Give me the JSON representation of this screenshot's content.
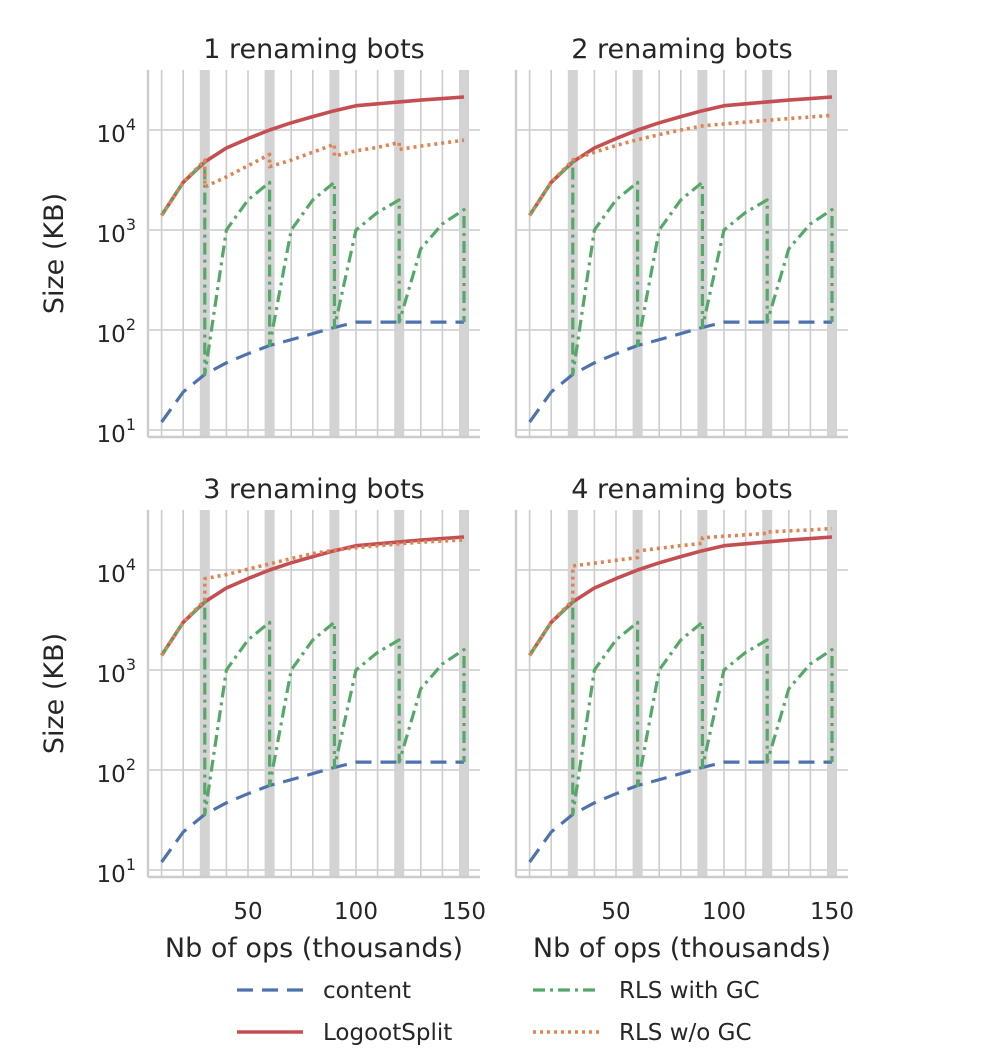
{
  "chart_data": {
    "type": "line",
    "y_scale": "log",
    "grid": true,
    "legend_placement": "bottom",
    "xlabel": "Nb of ops (thousands)",
    "ylabel": "Size (KB)",
    "xlim": [
      5,
      155
    ],
    "ylim": [
      8,
      40000
    ],
    "x_ticks": [
      50,
      100,
      150
    ],
    "x_tick_labels": [
      "50",
      "100",
      "150"
    ],
    "y_ticks": [
      10,
      100,
      1000,
      10000
    ],
    "y_tick_labels": [
      {
        "base": "10",
        "exp": "1"
      },
      {
        "base": "10",
        "exp": "2"
      },
      {
        "base": "10",
        "exp": "3"
      },
      {
        "base": "10",
        "exp": "4"
      }
    ],
    "rename_markers_x": [
      30,
      60,
      90,
      120,
      150
    ],
    "series_styles": {
      "content": {
        "color": "#4c72b0",
        "dash": "16,9",
        "width": 3.2
      },
      "LogootSplit": {
        "color": "#c44e52",
        "dash": "",
        "width": 3.6
      },
      "RLS with GC": {
        "color": "#55a868",
        "dash": "12,5,3,5",
        "width": 3.2
      },
      "RLS w/o GC": {
        "color": "#dd8452",
        "dash": "3,4",
        "width": 3.6
      }
    },
    "legend": [
      {
        "label": "content",
        "style": "content"
      },
      {
        "label": "LogootSplit",
        "style": "LogootSplit"
      },
      {
        "label": "RLS with GC",
        "style": "RLS with GC"
      },
      {
        "label": "RLS w/o GC",
        "style": "RLS w/o GC"
      }
    ],
    "panels": [
      {
        "title": "1 renaming bots",
        "series": [
          {
            "name": "content",
            "x": [
              10,
              20,
              30,
              40,
              50,
              60,
              70,
              80,
              90,
              100,
              110,
              120,
              130,
              140,
              150
            ],
            "y": [
              12,
              24,
              36,
              47,
              58,
              70,
              80,
              92,
              106,
              120,
              120,
              120,
              120,
              120,
              120
            ]
          },
          {
            "name": "LogootSplit",
            "x": [
              10,
              20,
              30,
              40,
              50,
              60,
              70,
              80,
              90,
              100,
              110,
              120,
              130,
              140,
              150
            ],
            "y": [
              1400,
              3000,
              4800,
              6600,
              8200,
              10000,
              11800,
              13600,
              15600,
              17500,
              18300,
              19100,
              19900,
              20600,
              21400
            ]
          },
          {
            "name": "RLS with GC",
            "x": [
              10,
              20,
              30,
              30,
              40,
              50,
              60,
              60,
              70,
              80,
              90,
              90,
              100,
              110,
              120,
              120,
              130,
              140,
              150,
              150
            ],
            "y": [
              1400,
              3000,
              4800,
              36,
              1000,
              2000,
              3000,
              70,
              1000,
              2000,
              3000,
              106,
              1000,
              1500,
              2000,
              120,
              650,
              1150,
              1600,
              120
            ]
          },
          {
            "name": "RLS w/o GC",
            "x": [
              10,
              20,
              30,
              30,
              40,
              50,
              60,
              60,
              70,
              80,
              90,
              90,
              100,
              110,
              120,
              120,
              130,
              140,
              150
            ],
            "y": [
              1400,
              3000,
              5000,
              2700,
              3400,
              4400,
              5700,
              4300,
              5000,
              6000,
              7200,
              5500,
              6200,
              6700,
              7500,
              6400,
              6900,
              7400,
              7900
            ]
          }
        ]
      },
      {
        "title": "2 renaming bots",
        "series": [
          {
            "name": "content",
            "x": [
              10,
              20,
              30,
              40,
              50,
              60,
              70,
              80,
              90,
              100,
              110,
              120,
              130,
              140,
              150
            ],
            "y": [
              12,
              24,
              36,
              47,
              58,
              70,
              80,
              92,
              106,
              120,
              120,
              120,
              120,
              120,
              120
            ]
          },
          {
            "name": "LogootSplit",
            "x": [
              10,
              20,
              30,
              40,
              50,
              60,
              70,
              80,
              90,
              100,
              110,
              120,
              130,
              140,
              150
            ],
            "y": [
              1400,
              3000,
              4800,
              6600,
              8200,
              10000,
              11800,
              13600,
              15600,
              17500,
              18300,
              19100,
              19900,
              20600,
              21400
            ]
          },
          {
            "name": "RLS with GC",
            "x": [
              10,
              20,
              30,
              30,
              40,
              50,
              60,
              60,
              70,
              80,
              90,
              90,
              100,
              110,
              120,
              120,
              130,
              140,
              150,
              150
            ],
            "y": [
              1400,
              3000,
              4800,
              36,
              1000,
              2000,
              3000,
              70,
              1000,
              2000,
              3000,
              106,
              1000,
              1500,
              2000,
              120,
              650,
              1150,
              1600,
              120
            ]
          },
          {
            "name": "RLS w/o GC",
            "x": [
              10,
              20,
              30,
              40,
              50,
              60,
              70,
              80,
              90,
              100,
              110,
              120,
              130,
              140,
              150
            ],
            "y": [
              1400,
              3000,
              5000,
              6000,
              7000,
              8000,
              9000,
              10000,
              11000,
              11500,
              12000,
              12500,
              13000,
              13500,
              14000
            ]
          }
        ]
      },
      {
        "title": "3 renaming bots",
        "series": [
          {
            "name": "content",
            "x": [
              10,
              20,
              30,
              40,
              50,
              60,
              70,
              80,
              90,
              100,
              110,
              120,
              130,
              140,
              150
            ],
            "y": [
              12,
              24,
              36,
              47,
              58,
              70,
              80,
              92,
              106,
              120,
              120,
              120,
              120,
              120,
              120
            ]
          },
          {
            "name": "LogootSplit",
            "x": [
              10,
              20,
              30,
              40,
              50,
              60,
              70,
              80,
              90,
              100,
              110,
              120,
              130,
              140,
              150
            ],
            "y": [
              1400,
              3000,
              4800,
              6600,
              8200,
              10000,
              11800,
              13600,
              15600,
              17500,
              18300,
              19100,
              19900,
              20600,
              21400
            ]
          },
          {
            "name": "RLS with GC",
            "x": [
              10,
              20,
              30,
              30,
              40,
              50,
              60,
              60,
              70,
              80,
              90,
              90,
              100,
              110,
              120,
              120,
              130,
              140,
              150,
              150
            ],
            "y": [
              1400,
              3000,
              4800,
              36,
              1000,
              2000,
              3000,
              70,
              1000,
              2000,
              3000,
              106,
              1000,
              1500,
              2000,
              120,
              650,
              1150,
              1600,
              120
            ]
          },
          {
            "name": "RLS w/o GC",
            "x": [
              10,
              20,
              30,
              30,
              40,
              50,
              60,
              70,
              80,
              90,
              100,
              110,
              120,
              130,
              140,
              150
            ],
            "y": [
              1400,
              3000,
              5000,
              8200,
              9000,
              10200,
              11500,
              13000,
              14600,
              15800,
              16700,
              17500,
              18300,
              19000,
              19500,
              20000
            ]
          }
        ]
      },
      {
        "title": "4 renaming bots",
        "series": [
          {
            "name": "content",
            "x": [
              10,
              20,
              30,
              40,
              50,
              60,
              70,
              80,
              90,
              100,
              110,
              120,
              130,
              140,
              150
            ],
            "y": [
              12,
              24,
              36,
              47,
              58,
              70,
              80,
              92,
              106,
              120,
              120,
              120,
              120,
              120,
              120
            ]
          },
          {
            "name": "LogootSplit",
            "x": [
              10,
              20,
              30,
              40,
              50,
              60,
              70,
              80,
              90,
              100,
              110,
              120,
              130,
              140,
              150
            ],
            "y": [
              1400,
              3000,
              4800,
              6600,
              8200,
              10000,
              11800,
              13600,
              15600,
              17500,
              18300,
              19100,
              19900,
              20600,
              21400
            ]
          },
          {
            "name": "RLS with GC",
            "x": [
              10,
              20,
              30,
              30,
              40,
              50,
              60,
              60,
              70,
              80,
              90,
              90,
              100,
              110,
              120,
              120,
              130,
              140,
              150,
              150
            ],
            "y": [
              1400,
              3000,
              4800,
              36,
              1000,
              2000,
              3000,
              70,
              1000,
              2000,
              3000,
              106,
              1000,
              1500,
              2000,
              120,
              650,
              1150,
              1600,
              120
            ]
          },
          {
            "name": "RLS w/o GC",
            "x": [
              10,
              20,
              30,
              30,
              40,
              50,
              60,
              60,
              70,
              80,
              90,
              90,
              100,
              110,
              120,
              120,
              130,
              140,
              150
            ],
            "y": [
              1400,
              3000,
              5000,
              11000,
              11700,
              12500,
              13300,
              15500,
              16500,
              17500,
              18500,
              21000,
              21800,
              22500,
              23300,
              24000,
              24600,
              25200,
              26000
            ]
          }
        ]
      }
    ]
  }
}
